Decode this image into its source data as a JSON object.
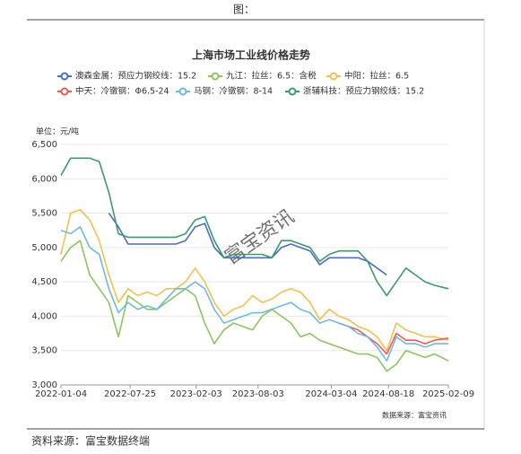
{
  "header": {
    "title": "图："
  },
  "chart_data": {
    "type": "line",
    "title": "上海市场工业线价格走势",
    "y_unit": "单位：元/吨",
    "watermark": "富宝资讯",
    "source": "数据来源：富宝资讯",
    "x": [
      "2022-01-04",
      "2022-02-01",
      "2022-03-01",
      "2022-03-29",
      "2022-04-26",
      "2022-05-24",
      "2022-06-21",
      "2022-07-19",
      "2022-08-16",
      "2022-09-13",
      "2022-10-11",
      "2022-11-08",
      "2022-12-06",
      "2023-01-03",
      "2023-01-31",
      "2023-02-28",
      "2023-03-28",
      "2023-04-25",
      "2023-05-23",
      "2023-06-20",
      "2023-07-18",
      "2023-08-15",
      "2023-09-12",
      "2023-10-10",
      "2023-11-07",
      "2023-12-05",
      "2024-01-02",
      "2024-01-30",
      "2024-02-27",
      "2024-03-26",
      "2024-04-23",
      "2024-05-21",
      "2024-06-18",
      "2024-07-16",
      "2024-08-13",
      "2024-09-10",
      "2024-10-08",
      "2024-11-05",
      "2024-12-03",
      "2024-12-31",
      "2025-02-09"
    ],
    "xlim": [
      "2022-01-04",
      "2025-02-09"
    ],
    "xticks": [
      "2022-01-04",
      "2022-07-25",
      "2023-02-03",
      "2023-08-03",
      "2024-03-04",
      "2024-08-18",
      "2025-02-09"
    ],
    "ylim": [
      3000,
      6500
    ],
    "yticks": [
      {
        "value": 3000,
        "label": "3,000"
      },
      {
        "value": 3500,
        "label": "3,500"
      },
      {
        "value": 4000,
        "label": "4,000"
      },
      {
        "value": 4500,
        "label": "4,500"
      },
      {
        "value": 5000,
        "label": "5,000"
      },
      {
        "value": 5500,
        "label": "5,500"
      },
      {
        "value": 6000,
        "label": "6,000"
      },
      {
        "value": 6500,
        "label": "6,500"
      }
    ],
    "grid": true,
    "series": [
      {
        "name": "澳森金属：预应力钢绞线：15.2",
        "color": "#4a6cc4",
        "values": [
          null,
          null,
          null,
          null,
          null,
          5500,
          5300,
          5050,
          5050,
          5050,
          5050,
          5050,
          5050,
          5100,
          5300,
          5350,
          5000,
          4850,
          4850,
          4850,
          4850,
          4850,
          4850,
          5000,
          5050,
          5000,
          4950,
          4750,
          4850,
          4850,
          4850,
          4850,
          4800,
          4700,
          4600,
          null,
          null,
          null,
          null,
          null,
          null
        ]
      },
      {
        "name": "九江：拉丝：6.5：含税",
        "color": "#8cc65a",
        "values": [
          4800,
          5000,
          5100,
          4600,
          4400,
          4200,
          3700,
          4300,
          4200,
          4100,
          4100,
          4200,
          4300,
          4400,
          4300,
          3900,
          3600,
          3800,
          3900,
          3850,
          3800,
          4000,
          4100,
          4000,
          3900,
          3700,
          3750,
          3650,
          3600,
          3550,
          3500,
          3450,
          3450,
          3400,
          3200,
          3300,
          3500,
          3450,
          3400,
          3450,
          3350
        ]
      },
      {
        "name": "中阳：拉丝：6.5",
        "color": "#f4c04c",
        "values": [
          4900,
          5500,
          5550,
          5400,
          5100,
          4600,
          4200,
          4400,
          4300,
          4350,
          4300,
          4400,
          4400,
          4500,
          4700,
          4500,
          4200,
          4000,
          4100,
          4150,
          4300,
          4200,
          4250,
          4350,
          4400,
          4350,
          4200,
          3950,
          4100,
          4000,
          3950,
          3850,
          3800,
          3700,
          3500,
          3900,
          3800,
          3750,
          3700,
          3700,
          3650
        ]
      },
      {
        "name": "中天：冷镦钢：Φ6.5-24",
        "color": "#ee5a5a",
        "values": [
          null,
          null,
          null,
          null,
          null,
          null,
          null,
          null,
          null,
          null,
          null,
          null,
          null,
          null,
          null,
          null,
          null,
          null,
          null,
          null,
          null,
          null,
          null,
          null,
          null,
          null,
          null,
          null,
          null,
          3900,
          3850,
          3800,
          3700,
          3600,
          3450,
          3750,
          3650,
          3650,
          3600,
          3650,
          3680
        ]
      },
      {
        "name": "马钢：冷镦钢：8-14",
        "color": "#6cbae0",
        "values": [
          5250,
          5200,
          5300,
          5000,
          4900,
          4400,
          4050,
          4200,
          4100,
          4150,
          4100,
          4250,
          4400,
          4400,
          4500,
          4400,
          4100,
          3900,
          3950,
          4000,
          4050,
          4050,
          4100,
          4150,
          4200,
          4100,
          4050,
          3900,
          3950,
          3900,
          3850,
          3750,
          3700,
          3550,
          3350,
          3700,
          3600,
          3600,
          3550,
          3600,
          3600
        ]
      },
      {
        "name": "浙辅科技：预应力钢绞线：15.2",
        "color": "#3a9a6c",
        "values": [
          6050,
          6300,
          6300,
          6300,
          6250,
          5800,
          5200,
          5150,
          5150,
          5150,
          5150,
          5150,
          5150,
          5200,
          5400,
          5450,
          5100,
          4850,
          4900,
          4900,
          4900,
          4900,
          4850,
          5100,
          5100,
          5050,
          5000,
          4800,
          4900,
          4950,
          4950,
          4950,
          4800,
          4500,
          4300,
          4500,
          4700,
          4600,
          4500,
          4450,
          4400
        ]
      }
    ]
  },
  "footer": {
    "text": "资料来源：富宝数据终端"
  }
}
